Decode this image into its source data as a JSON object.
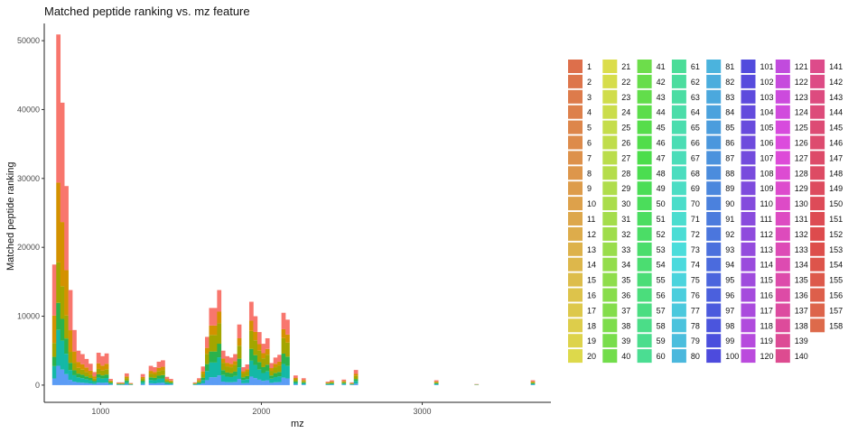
{
  "chart_data": {
    "type": "bar",
    "stacked": true,
    "title": "Matched peptide ranking vs. mz feature",
    "xlabel": "mz",
    "ylabel": "Matched peptide ranking",
    "xlim": [
      650,
      3800
    ],
    "ylim": [
      -2500,
      52500
    ],
    "x_ticks": [
      1000,
      2000,
      3000
    ],
    "y_ticks": [
      0,
      10000,
      20000,
      30000,
      40000,
      50000
    ],
    "y_tick_labels": [
      "0",
      "10000",
      "20000",
      "30000",
      "40000",
      "50000"
    ],
    "x_tick_labels": [
      "1000",
      "2000",
      "3000"
    ],
    "grid": false,
    "legend_position": "right",
    "legend_groups": 158,
    "bin_width": 25,
    "bins": [
      {
        "x": 712,
        "total": 17500,
        "bottom_share": 0.35
      },
      {
        "x": 737,
        "total": 50900,
        "bottom_share": 0.35
      },
      {
        "x": 762,
        "total": 41000,
        "bottom_share": 0.35
      },
      {
        "x": 787,
        "total": 28900,
        "bottom_share": 0.35
      },
      {
        "x": 812,
        "total": 13800,
        "bottom_share": 0.35
      },
      {
        "x": 837,
        "total": 8000,
        "bottom_share": 0.4
      },
      {
        "x": 862,
        "total": 5000,
        "bottom_share": 0.5
      },
      {
        "x": 887,
        "total": 4500,
        "bottom_share": 0.5
      },
      {
        "x": 912,
        "total": 3800,
        "bottom_share": 0.5
      },
      {
        "x": 937,
        "total": 3100,
        "bottom_share": 0.5
      },
      {
        "x": 962,
        "total": 1900,
        "bottom_share": 0.5
      },
      {
        "x": 987,
        "total": 4700,
        "bottom_share": 0.5
      },
      {
        "x": 1012,
        "total": 4200,
        "bottom_share": 0.5
      },
      {
        "x": 1037,
        "total": 4600,
        "bottom_share": 0.5
      },
      {
        "x": 1062,
        "total": 900,
        "bottom_share": 0.6
      },
      {
        "x": 1112,
        "total": 400,
        "bottom_share": 0.6
      },
      {
        "x": 1137,
        "total": 400,
        "bottom_share": 0.6
      },
      {
        "x": 1162,
        "total": 1700,
        "bottom_share": 0.6
      },
      {
        "x": 1187,
        "total": 300,
        "bottom_share": 0.6
      },
      {
        "x": 1262,
        "total": 1600,
        "bottom_share": 0.6
      },
      {
        "x": 1312,
        "total": 2800,
        "bottom_share": 0.6
      },
      {
        "x": 1337,
        "total": 2600,
        "bottom_share": 0.6
      },
      {
        "x": 1362,
        "total": 3400,
        "bottom_share": 0.6
      },
      {
        "x": 1387,
        "total": 3600,
        "bottom_share": 0.6
      },
      {
        "x": 1412,
        "total": 1200,
        "bottom_share": 0.6
      },
      {
        "x": 1437,
        "total": 900,
        "bottom_share": 0.6
      },
      {
        "x": 1587,
        "total": 400,
        "bottom_share": 0.6
      },
      {
        "x": 1612,
        "total": 1000,
        "bottom_share": 0.6
      },
      {
        "x": 1637,
        "total": 2700,
        "bottom_share": 0.6
      },
      {
        "x": 1662,
        "total": 7000,
        "bottom_share": 0.65
      },
      {
        "x": 1687,
        "total": 11200,
        "bottom_share": 0.65
      },
      {
        "x": 1712,
        "total": 11200,
        "bottom_share": 0.65
      },
      {
        "x": 1737,
        "total": 13800,
        "bottom_share": 0.65
      },
      {
        "x": 1762,
        "total": 5000,
        "bottom_share": 0.65
      },
      {
        "x": 1787,
        "total": 4200,
        "bottom_share": 0.65
      },
      {
        "x": 1812,
        "total": 4000,
        "bottom_share": 0.65
      },
      {
        "x": 1837,
        "total": 4500,
        "bottom_share": 0.65
      },
      {
        "x": 1862,
        "total": 8800,
        "bottom_share": 0.65
      },
      {
        "x": 1887,
        "total": 2600,
        "bottom_share": 0.65
      },
      {
        "x": 1912,
        "total": 3000,
        "bottom_share": 0.65
      },
      {
        "x": 1937,
        "total": 12100,
        "bottom_share": 0.65
      },
      {
        "x": 1962,
        "total": 10000,
        "bottom_share": 0.65
      },
      {
        "x": 1987,
        "total": 7700,
        "bottom_share": 0.65
      },
      {
        "x": 2012,
        "total": 6000,
        "bottom_share": 0.65
      },
      {
        "x": 2037,
        "total": 6800,
        "bottom_share": 0.65
      },
      {
        "x": 2062,
        "total": 3200,
        "bottom_share": 0.65
      },
      {
        "x": 2087,
        "total": 4000,
        "bottom_share": 0.65
      },
      {
        "x": 2112,
        "total": 4400,
        "bottom_share": 0.65
      },
      {
        "x": 2137,
        "total": 10500,
        "bottom_share": 0.65
      },
      {
        "x": 2162,
        "total": 9500,
        "bottom_share": 0.65
      },
      {
        "x": 2212,
        "total": 1400,
        "bottom_share": 0.6
      },
      {
        "x": 2262,
        "total": 1000,
        "bottom_share": 0.6
      },
      {
        "x": 2412,
        "total": 500,
        "bottom_share": 0.6
      },
      {
        "x": 2437,
        "total": 700,
        "bottom_share": 0.6
      },
      {
        "x": 2512,
        "total": 800,
        "bottom_share": 0.6
      },
      {
        "x": 2562,
        "total": 400,
        "bottom_share": 0.6
      },
      {
        "x": 2587,
        "total": 2200,
        "bottom_share": 0.6
      },
      {
        "x": 3087,
        "total": 700,
        "bottom_share": 0.6
      },
      {
        "x": 3337,
        "total": 150,
        "bottom_share": 0.6
      },
      {
        "x": 3687,
        "total": 700,
        "bottom_share": 0.6
      }
    ]
  }
}
